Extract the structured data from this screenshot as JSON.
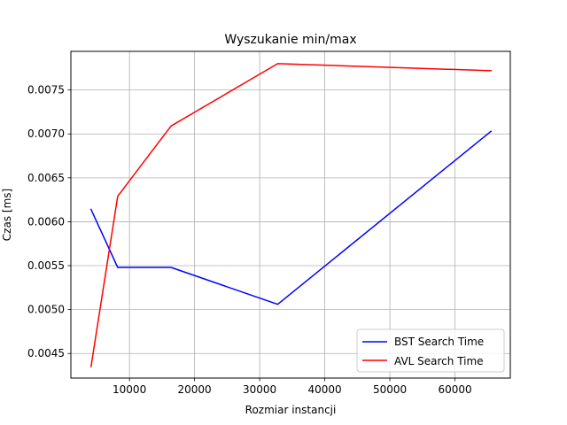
{
  "chart_data": {
    "type": "line",
    "title": "Wyszukanie min/max",
    "xlabel": "Rozmiar instancji",
    "ylabel": "Czas [ms]",
    "xlim": [
      1000,
      68500
    ],
    "ylim": [
      0.00422,
      0.00794
    ],
    "xticks": [
      10000,
      20000,
      30000,
      40000,
      50000,
      60000
    ],
    "xtick_labels": [
      "10000",
      "20000",
      "30000",
      "40000",
      "50000",
      "60000"
    ],
    "yticks": [
      0.0045,
      0.005,
      0.0055,
      0.006,
      0.0065,
      0.007,
      0.0075
    ],
    "ytick_labels": [
      "0.0045",
      "0.0050",
      "0.0055",
      "0.0060",
      "0.0065",
      "0.0070",
      "0.0075"
    ],
    "grid": true,
    "legend_position": "lower-right",
    "series": [
      {
        "name": "BST Search Time",
        "color": "#0000ff",
        "x": [
          4096,
          8192,
          16384,
          32768,
          65536
        ],
        "y": [
          0.00614,
          0.00548,
          0.00548,
          0.00506,
          0.00703
        ]
      },
      {
        "name": "AVL Search Time",
        "color": "#ff0000",
        "x": [
          4096,
          8192,
          16384,
          32768,
          65536
        ],
        "y": [
          0.00435,
          0.00629,
          0.00709,
          0.0078,
          0.00772
        ]
      }
    ]
  }
}
